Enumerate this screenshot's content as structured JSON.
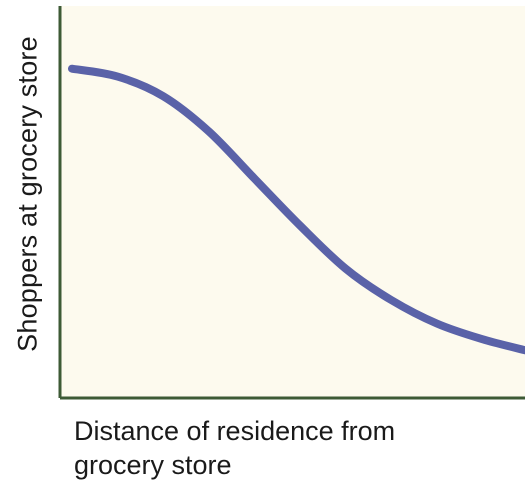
{
  "colors": {
    "plot_background": "#fdfaee",
    "axis": "#3d5a35",
    "curve": "#5a62a8",
    "text": "#1a1a1a"
  },
  "chart_data": {
    "type": "line",
    "title": "",
    "xlabel": "Distance of residence from\ngrocery store",
    "ylabel": "Shoppers at grocery store",
    "xlim": [
      0,
      1
    ],
    "ylim": [
      0,
      1
    ],
    "grid": false,
    "legend": "none",
    "series": [
      {
        "x": [
          0.0,
          0.1,
          0.2,
          0.3,
          0.4,
          0.5,
          0.6,
          0.7,
          0.8,
          0.9,
          1.0
        ],
        "values": [
          0.84,
          0.82,
          0.77,
          0.68,
          0.56,
          0.44,
          0.33,
          0.25,
          0.19,
          0.15,
          0.12
        ]
      }
    ]
  }
}
